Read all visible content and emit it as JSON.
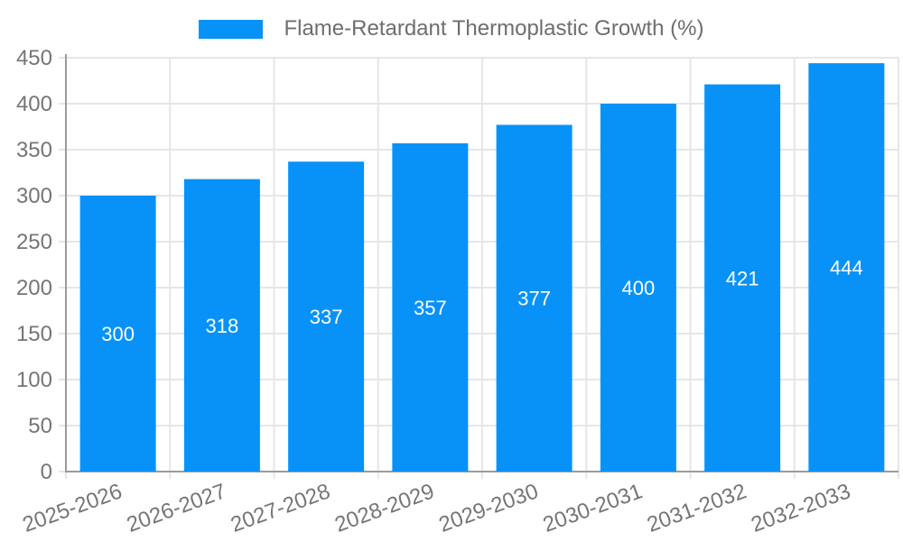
{
  "chart_data": {
    "type": "bar",
    "title": "Flame-Retardant Thermoplastic Growth (%)",
    "categories": [
      "2025-2026",
      "2026-2027",
      "2027-2028",
      "2028-2029",
      "2029-2030",
      "2030-2031",
      "2031-2032",
      "2032-2033"
    ],
    "values": [
      300,
      318,
      337,
      357,
      377,
      400,
      421,
      444
    ],
    "yticks": [
      0,
      50,
      100,
      150,
      200,
      250,
      300,
      350,
      400,
      450
    ],
    "ylim": [
      0,
      450
    ],
    "xlabel": "",
    "ylabel": "",
    "legend_position": "top",
    "grid": "on",
    "bar_color": "#0892f8",
    "value_label_color": "#ffffff",
    "grid_color": "#e6e6e6",
    "axis_line_color": "#9b9b9b",
    "tick_label_color": "#757575",
    "legend_text_color": "#6e6e6e",
    "background_color": "#ffffff"
  }
}
